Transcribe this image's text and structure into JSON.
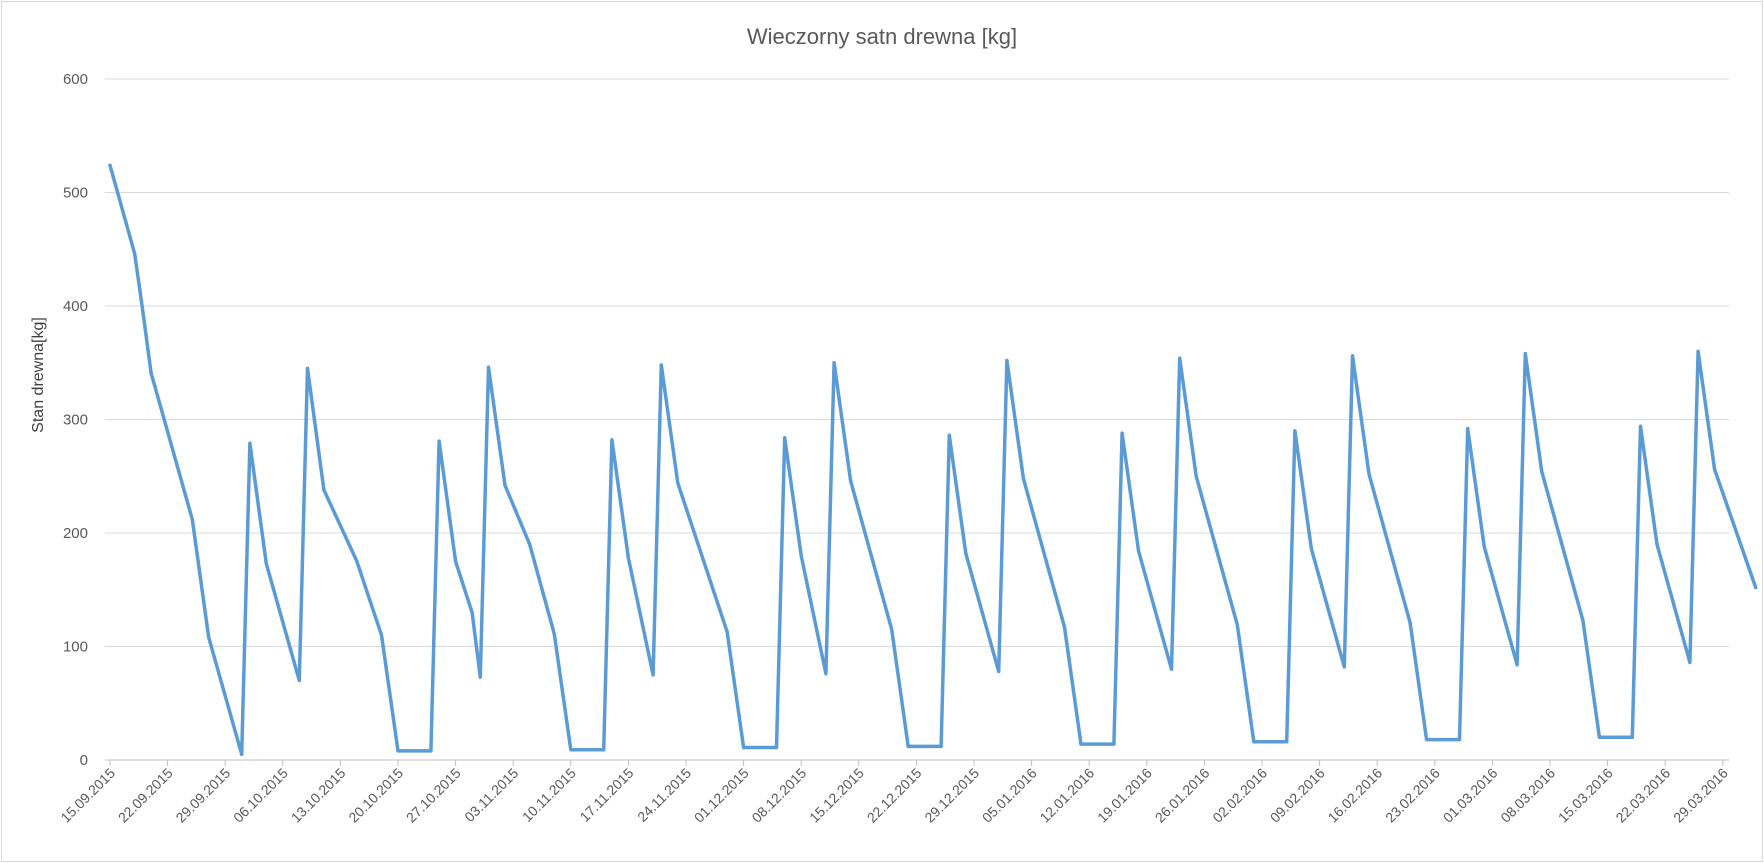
{
  "chart_data": {
    "type": "line",
    "title": "Wieczorny satn drewna [kg]",
    "xlabel": "",
    "ylabel": "Stan drewna[kg]",
    "ylim": [
      0,
      600
    ],
    "y_ticks": [
      "0",
      "100",
      "200",
      "300",
      "400",
      "500",
      "600"
    ],
    "grid": true,
    "legend": "none",
    "line_color": "#5b9bd5",
    "x_ticks": [
      "15.09.2015",
      "22.09.2015",
      "29.09.2015",
      "06.10.2015",
      "13.10.2015",
      "20.10.2015",
      "27.10.2015",
      "03.11.2015",
      "10.11.2015",
      "17.11.2015",
      "24.11.2015",
      "01.12.2015",
      "08.12.2015",
      "15.12.2015",
      "22.12.2015",
      "29.12.2015",
      "05.01.2016",
      "12.01.2016",
      "19.01.2016",
      "26.01.2016",
      "02.02.2016",
      "09.02.2016",
      "16.02.2016",
      "23.02.2016",
      "01.03.2016",
      "08.03.2016",
      "15.03.2016",
      "22.03.2016",
      "29.03.2016"
    ],
    "series": [
      {
        "points": [
          [
            "15.09.2015",
            524
          ],
          [
            "18.09.2015",
            446
          ],
          [
            "19.09.2015",
            395
          ],
          [
            "20.09.2015",
            341
          ],
          [
            "25.09.2015",
            212
          ],
          [
            "27.09.2015",
            108
          ],
          [
            "01.10.2015",
            5
          ],
          [
            "02.10.2015",
            279
          ],
          [
            "04.10.2015",
            173
          ],
          [
            "08.10.2015",
            70
          ],
          [
            "09.10.2015",
            345
          ],
          [
            "11.10.2015",
            238
          ],
          [
            "15.10.2015",
            175
          ],
          [
            "18.10.2015",
            110
          ],
          [
            "20.10.2015",
            8
          ],
          [
            "24.10.2015",
            8
          ],
          [
            "25.10.2015",
            281
          ],
          [
            "27.10.2015",
            175
          ],
          [
            "29.10.2015",
            130
          ],
          [
            "30.10.2015",
            73
          ],
          [
            "31.10.2015",
            346
          ],
          [
            "02.11.2015",
            242
          ],
          [
            "05.11.2015",
            190
          ],
          [
            "08.11.2015",
            111
          ],
          [
            "10.11.2015",
            9
          ],
          [
            "14.11.2015",
            9
          ],
          [
            "15.11.2015",
            282
          ],
          [
            "17.11.2015",
            178
          ],
          [
            "20.11.2015",
            75
          ],
          [
            "21.11.2015",
            348
          ],
          [
            "23.11.2015",
            244
          ],
          [
            "29.11.2015",
            113
          ],
          [
            "01.12.2015",
            11
          ],
          [
            "05.12.2015",
            11
          ],
          [
            "06.12.2015",
            284
          ],
          [
            "08.12.2015",
            180
          ],
          [
            "11.12.2015",
            76
          ],
          [
            "12.12.2015",
            350
          ],
          [
            "14.12.2015",
            246
          ],
          [
            "19.12.2015",
            115
          ],
          [
            "21.12.2015",
            12
          ],
          [
            "25.12.2015",
            12
          ],
          [
            "26.12.2015",
            286
          ],
          [
            "28.12.2015",
            182
          ],
          [
            "01.01.2016",
            78
          ],
          [
            "02.01.2016",
            352
          ],
          [
            "04.01.2016",
            248
          ],
          [
            "09.01.2016",
            117
          ],
          [
            "11.01.2016",
            14
          ],
          [
            "15.01.2016",
            14
          ],
          [
            "16.01.2016",
            288
          ],
          [
            "18.01.2016",
            184
          ],
          [
            "22.01.2016",
            80
          ],
          [
            "23.01.2016",
            354
          ],
          [
            "25.01.2016",
            250
          ],
          [
            "30.01.2016",
            119
          ],
          [
            "01.02.2016",
            16
          ],
          [
            "05.02.2016",
            16
          ],
          [
            "06.02.2016",
            290
          ],
          [
            "08.02.2016",
            186
          ],
          [
            "12.02.2016",
            82
          ],
          [
            "13.02.2016",
            356
          ],
          [
            "15.02.2016",
            252
          ],
          [
            "20.02.2016",
            121
          ],
          [
            "22.02.2016",
            18
          ],
          [
            "26.02.2016",
            18
          ],
          [
            "27.02.2016",
            292
          ],
          [
            "29.02.2016",
            188
          ],
          [
            "04.03.2016",
            84
          ],
          [
            "05.03.2016",
            358
          ],
          [
            "07.03.2016",
            254
          ],
          [
            "12.03.2016",
            123
          ],
          [
            "14.03.2016",
            20
          ],
          [
            "18.03.2016",
            20
          ],
          [
            "19.03.2016",
            294
          ],
          [
            "21.03.2016",
            190
          ],
          [
            "25.03.2016",
            86
          ],
          [
            "26.03.2016",
            360
          ],
          [
            "28.03.2016",
            256
          ],
          [
            "02.04.2016",
            152
          ]
        ]
      }
    ]
  }
}
